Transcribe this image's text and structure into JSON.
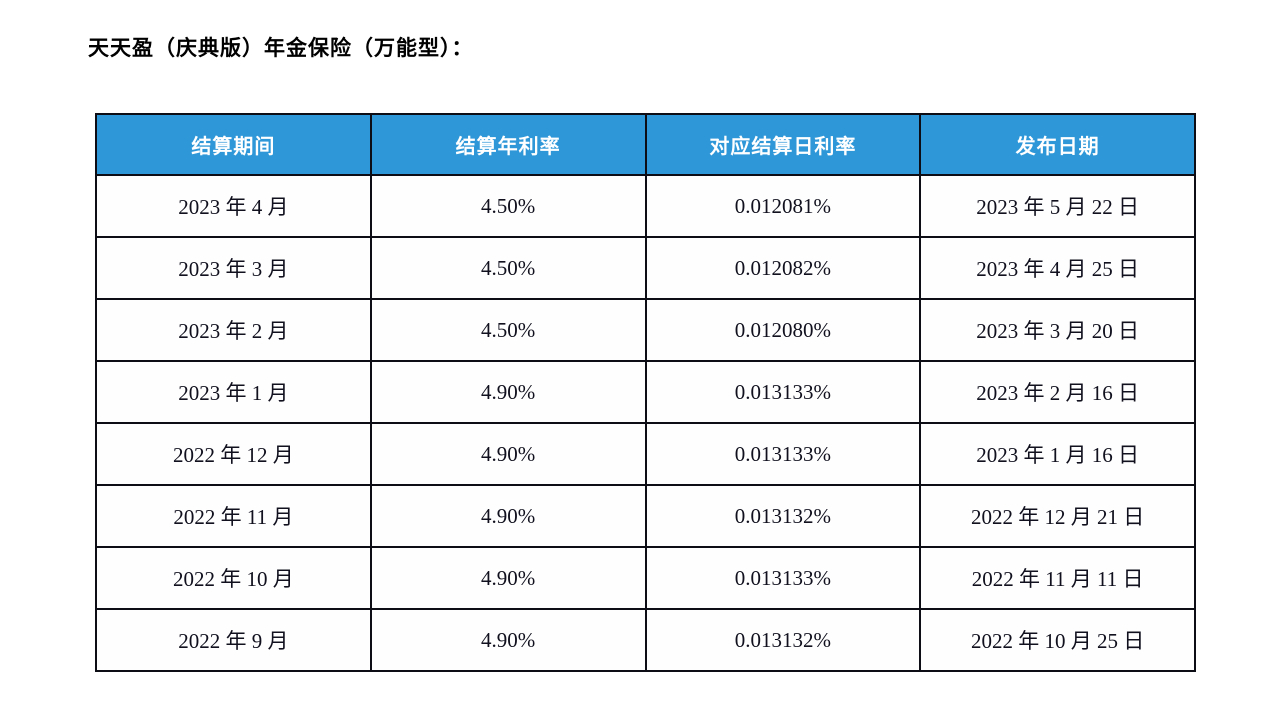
{
  "title": "天天盈（庆典版）年金保险（万能型）：",
  "colors": {
    "header_bg": "#2e97d8",
    "header_text": "#ffffff",
    "border": "#0d0d16",
    "body_text": "#10101e",
    "page_bg": "#ffffff"
  },
  "table": {
    "headers": [
      "结算期间",
      "结算年利率",
      "对应结算日利率",
      "发布日期"
    ],
    "rows": [
      {
        "period": "2023 年 4 月",
        "annual_rate": "4.50%",
        "daily_rate": "0.012081%",
        "publish_date": "2023 年 5 月 22 日"
      },
      {
        "period": "2023 年 3 月",
        "annual_rate": "4.50%",
        "daily_rate": "0.012082%",
        "publish_date": "2023 年 4 月 25 日"
      },
      {
        "period": "2023 年 2 月",
        "annual_rate": "4.50%",
        "daily_rate": "0.012080%",
        "publish_date": "2023 年 3 月 20 日"
      },
      {
        "period": "2023 年 1 月",
        "annual_rate": "4.90%",
        "daily_rate": "0.013133%",
        "publish_date": "2023 年 2 月 16 日"
      },
      {
        "period": "2022 年 12 月",
        "annual_rate": "4.90%",
        "daily_rate": "0.013133%",
        "publish_date": "2023 年 1 月 16 日"
      },
      {
        "period": "2022 年 11 月",
        "annual_rate": "4.90%",
        "daily_rate": "0.013132%",
        "publish_date": "2022 年 12 月 21 日"
      },
      {
        "period": "2022 年 10 月",
        "annual_rate": "4.90%",
        "daily_rate": "0.013133%",
        "publish_date": "2022 年 11 月 11 日"
      },
      {
        "period": "2022 年 9 月",
        "annual_rate": "4.90%",
        "daily_rate": "0.013132%",
        "publish_date": "2022 年 10 月 25 日"
      }
    ]
  }
}
